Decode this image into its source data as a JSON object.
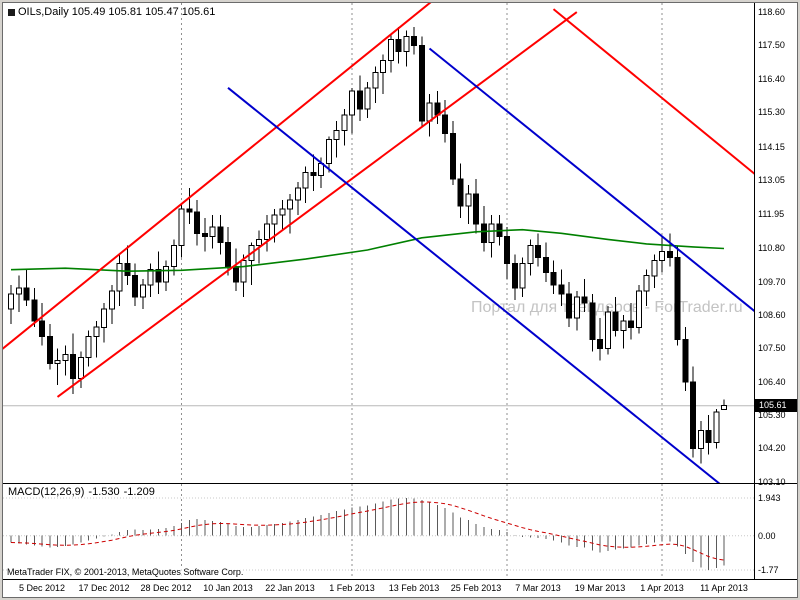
{
  "header": {
    "symbol": "OILs,Daily",
    "open": "105.49",
    "high": "105.81",
    "low": "105.47",
    "close": "105.61"
  },
  "watermark": {
    "text": "Портал для трейдеров - ForTrader.ru"
  },
  "price_scale": {
    "current": "105.61"
  },
  "macd_panel": {
    "label": "MACD(12,26,9)",
    "value": "-1.530",
    "signal": "-1.209",
    "scale_labels": [
      "1.943",
      "0.00",
      "-1.77"
    ]
  },
  "footer": {
    "copyright": "MetaTrader FIX, © 2001-2013, MetaQuotes Software Corp."
  },
  "chart_data": {
    "type": "candlestick",
    "symbol": "OILs",
    "timeframe": "Daily",
    "title": "OILs,Daily 105.49 105.81 105.47 105.61",
    "price_top": 118.9,
    "price_bottom": 103.06,
    "current_price": 105.61,
    "grid": "vertical-month-separators",
    "y_labels": [
      "118.60",
      "117.50",
      "116.40",
      "115.30",
      "114.15",
      "113.05",
      "111.95",
      "110.80",
      "109.70",
      "108.60",
      "107.50",
      "106.40",
      "105.30",
      "104.20",
      "103.10"
    ],
    "x_labels": [
      {
        "text": "5 Dec 2012",
        "index": 4
      },
      {
        "text": "17 Dec 2012",
        "index": 12
      },
      {
        "text": "28 Dec 2012",
        "index": 20
      },
      {
        "text": "10 Jan 2013",
        "index": 28
      },
      {
        "text": "22 Jan 2013",
        "index": 36
      },
      {
        "text": "1 Feb 2013",
        "index": 44
      },
      {
        "text": "13 Feb 2013",
        "index": 52
      },
      {
        "text": "25 Feb 2013",
        "index": 60
      },
      {
        "text": "7 Mar 2013",
        "index": 68
      },
      {
        "text": "19 Mar 2013",
        "index": 76
      },
      {
        "text": "1 Apr 2013",
        "index": 84
      },
      {
        "text": "11 Apr 2013",
        "index": 92
      }
    ],
    "month_separators": [
      22,
      44,
      64,
      84
    ],
    "candles": [
      [
        108.8,
        109.6,
        108.3,
        109.3
      ],
      [
        109.3,
        109.9,
        108.7,
        109.5
      ],
      [
        109.5,
        110.1,
        108.9,
        109.1
      ],
      [
        109.1,
        109.5,
        108.2,
        108.4
      ],
      [
        108.4,
        109.0,
        107.6,
        107.9
      ],
      [
        107.9,
        108.3,
        106.8,
        107.0
      ],
      [
        107.0,
        107.5,
        106.3,
        107.1
      ],
      [
        107.1,
        107.6,
        106.6,
        107.3
      ],
      [
        107.3,
        108.0,
        106.0,
        106.5
      ],
      [
        106.5,
        107.4,
        106.2,
        107.2
      ],
      [
        107.2,
        108.1,
        106.9,
        107.9
      ],
      [
        107.9,
        108.4,
        107.2,
        108.2
      ],
      [
        108.2,
        109.0,
        107.7,
        108.8
      ],
      [
        108.8,
        109.6,
        108.3,
        109.4
      ],
      [
        109.4,
        110.6,
        108.9,
        110.3
      ],
      [
        110.3,
        110.9,
        109.6,
        109.9
      ],
      [
        109.9,
        110.3,
        108.9,
        109.2
      ],
      [
        109.2,
        109.8,
        108.8,
        109.6
      ],
      [
        109.6,
        110.3,
        109.2,
        110.1
      ],
      [
        110.1,
        110.7,
        109.3,
        109.7
      ],
      [
        109.7,
        110.4,
        109.4,
        110.2
      ],
      [
        110.2,
        111.1,
        109.9,
        110.9
      ],
      [
        110.9,
        112.3,
        110.5,
        112.1
      ],
      [
        112.1,
        112.8,
        111.6,
        112.0
      ],
      [
        112.0,
        112.4,
        110.9,
        111.3
      ],
      [
        111.3,
        111.8,
        110.7,
        111.2
      ],
      [
        111.2,
        111.9,
        110.8,
        111.5
      ],
      [
        111.5,
        111.9,
        110.6,
        111.0
      ],
      [
        111.0,
        111.5,
        109.9,
        110.2
      ],
      [
        110.2,
        110.8,
        109.4,
        109.7
      ],
      [
        109.7,
        110.6,
        109.2,
        110.4
      ],
      [
        110.4,
        111.0,
        109.6,
        110.9
      ],
      [
        110.9,
        111.4,
        110.3,
        111.1
      ],
      [
        111.1,
        111.9,
        110.7,
        111.6
      ],
      [
        111.6,
        112.1,
        111.0,
        111.9
      ],
      [
        111.9,
        112.4,
        111.4,
        112.1
      ],
      [
        112.1,
        112.6,
        111.3,
        112.4
      ],
      [
        112.4,
        113.0,
        111.9,
        112.8
      ],
      [
        112.8,
        113.5,
        112.3,
        113.3
      ],
      [
        113.3,
        113.9,
        112.7,
        113.2
      ],
      [
        113.2,
        113.8,
        112.8,
        113.6
      ],
      [
        113.6,
        114.5,
        113.3,
        114.4
      ],
      [
        114.4,
        115.0,
        113.8,
        114.7
      ],
      [
        114.7,
        115.4,
        114.2,
        115.2
      ],
      [
        115.2,
        116.1,
        114.6,
        116.0
      ],
      [
        116.0,
        116.5,
        115.0,
        115.4
      ],
      [
        115.4,
        116.3,
        115.1,
        116.1
      ],
      [
        116.1,
        116.8,
        115.6,
        116.6
      ],
      [
        116.6,
        117.2,
        115.9,
        117.0
      ],
      [
        117.0,
        117.9,
        116.6,
        117.7
      ],
      [
        117.7,
        118.1,
        116.9,
        117.3
      ],
      [
        117.3,
        118.0,
        116.8,
        117.8
      ],
      [
        117.8,
        118.1,
        117.2,
        117.5
      ],
      [
        117.5,
        117.8,
        114.8,
        115.0
      ],
      [
        115.0,
        115.9,
        114.5,
        115.6
      ],
      [
        115.6,
        116.0,
        114.9,
        115.2
      ],
      [
        115.2,
        115.7,
        114.3,
        114.6
      ],
      [
        114.6,
        115.0,
        112.9,
        113.1
      ],
      [
        113.1,
        113.6,
        111.8,
        112.2
      ],
      [
        112.2,
        112.9,
        111.6,
        112.6
      ],
      [
        112.6,
        113.1,
        111.3,
        111.6
      ],
      [
        111.6,
        112.2,
        110.7,
        111.0
      ],
      [
        111.0,
        111.9,
        110.5,
        111.6
      ],
      [
        111.6,
        111.9,
        110.9,
        111.2
      ],
      [
        111.2,
        111.5,
        109.8,
        110.3
      ],
      [
        110.3,
        110.6,
        109.1,
        109.5
      ],
      [
        109.5,
        110.5,
        109.2,
        110.3
      ],
      [
        110.3,
        111.1,
        109.9,
        110.9
      ],
      [
        110.9,
        111.3,
        110.2,
        110.5
      ],
      [
        110.5,
        111.0,
        109.7,
        110.0
      ],
      [
        110.0,
        110.4,
        109.3,
        109.6
      ],
      [
        109.6,
        110.1,
        108.9,
        109.3
      ],
      [
        109.3,
        109.7,
        108.2,
        108.5
      ],
      [
        108.5,
        109.4,
        108.1,
        109.2
      ],
      [
        109.2,
        109.8,
        108.7,
        109.0
      ],
      [
        109.0,
        109.3,
        107.4,
        107.8
      ],
      [
        107.8,
        108.5,
        107.1,
        107.5
      ],
      [
        107.5,
        108.9,
        107.3,
        108.7
      ],
      [
        108.7,
        109.2,
        107.9,
        108.1
      ],
      [
        108.1,
        108.6,
        107.5,
        108.4
      ],
      [
        108.4,
        109.0,
        107.8,
        108.2
      ],
      [
        108.2,
        109.6,
        108.0,
        109.4
      ],
      [
        109.4,
        110.1,
        108.9,
        109.9
      ],
      [
        109.9,
        110.6,
        109.5,
        110.4
      ],
      [
        110.4,
        111.2,
        110.0,
        110.7
      ],
      [
        110.7,
        111.3,
        110.2,
        110.5
      ],
      [
        110.5,
        110.9,
        107.6,
        107.8
      ],
      [
        107.8,
        108.2,
        106.1,
        106.4
      ],
      [
        106.4,
        106.9,
        103.9,
        104.2
      ],
      [
        104.2,
        105.1,
        103.7,
        104.8
      ],
      [
        104.8,
        105.3,
        104.0,
        104.4
      ],
      [
        104.4,
        105.5,
        104.2,
        105.4
      ],
      [
        105.49,
        105.81,
        105.47,
        105.61
      ]
    ],
    "ma_points": [
      [
        0,
        110.1
      ],
      [
        7,
        110.15
      ],
      [
        15,
        110.05
      ],
      [
        22,
        110.08
      ],
      [
        30,
        110.2
      ],
      [
        38,
        110.45
      ],
      [
        46,
        110.75
      ],
      [
        53,
        111.15
      ],
      [
        60,
        111.35
      ],
      [
        66,
        111.42
      ],
      [
        71,
        111.3
      ],
      [
        77,
        111.1
      ],
      [
        82,
        110.95
      ],
      [
        88,
        110.85
      ],
      [
        92,
        110.8
      ]
    ],
    "ma_color": "#008000",
    "trendlines": [
      {
        "color": "#ff0000",
        "from": [
          -2,
          107.3
        ],
        "to": [
          55,
          119.1
        ]
      },
      {
        "color": "#ff0000",
        "from": [
          6,
          105.9
        ],
        "to": [
          73,
          118.6
        ]
      },
      {
        "color": "#ff0000",
        "from": [
          70,
          118.7
        ],
        "to": [
          101,
          112.2
        ]
      },
      {
        "color": "#0000cc",
        "from": [
          28,
          116.1
        ],
        "to": [
          91.6,
          103.0
        ]
      },
      {
        "color": "#0000cc",
        "from": [
          54,
          117.4
        ],
        "to": [
          99,
          108.1
        ]
      }
    ],
    "macd": {
      "params": "12,26,9",
      "range": {
        "max": 1.943,
        "min": -1.77
      },
      "signal_period": 9,
      "last_value": -1.53,
      "last_signal": -1.209,
      "histogram": [
        -0.35,
        -0.4,
        -0.45,
        -0.5,
        -0.55,
        -0.6,
        -0.58,
        -0.52,
        -0.46,
        -0.36,
        -0.25,
        -0.15,
        -0.05,
        0.05,
        0.2,
        0.3,
        0.32,
        0.3,
        0.32,
        0.35,
        0.4,
        0.5,
        0.65,
        0.8,
        0.85,
        0.8,
        0.76,
        0.7,
        0.6,
        0.5,
        0.46,
        0.46,
        0.5,
        0.55,
        0.6,
        0.66,
        0.72,
        0.8,
        0.9,
        1.0,
        1.06,
        1.16,
        1.26,
        1.36,
        1.46,
        1.5,
        1.56,
        1.66,
        1.76,
        1.86,
        1.91,
        1.94,
        1.92,
        1.84,
        1.7,
        1.58,
        1.44,
        1.2,
        0.95,
        0.8,
        0.6,
        0.45,
        0.35,
        0.28,
        0.18,
        0.04,
        -0.06,
        -0.1,
        -0.12,
        -0.16,
        -0.26,
        -0.36,
        -0.5,
        -0.58,
        -0.62,
        -0.76,
        -0.86,
        -0.8,
        -0.72,
        -0.66,
        -0.6,
        -0.5,
        -0.42,
        -0.35,
        -0.3,
        -0.3,
        -0.55,
        -0.95,
        -1.35,
        -1.65,
        -1.77,
        -1.66,
        -1.53
      ]
    }
  }
}
